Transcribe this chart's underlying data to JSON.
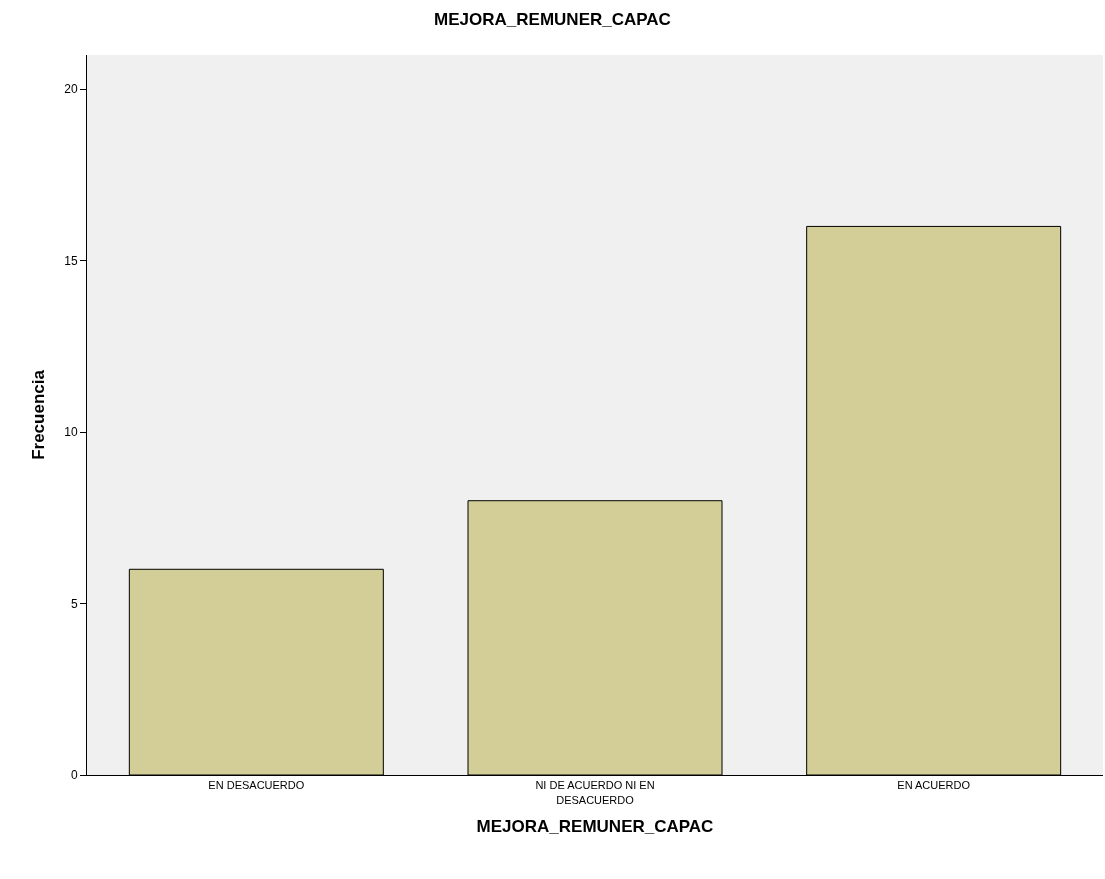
{
  "chart_data": {
    "type": "bar",
    "title": "MEJORA_REMUNER_CAPAC",
    "xlabel": "MEJORA_REMUNER_CAPAC",
    "ylabel": "Frecuencia",
    "categories": [
      "EN DESACUERDO",
      "NI DE ACUERDO NI EN DESACUERDO",
      "EN ACUERDO"
    ],
    "values": [
      6,
      8,
      16
    ],
    "color": "#d3ce97",
    "ylim": [
      0,
      21
    ],
    "yticks": [
      0,
      5,
      10,
      15,
      20
    ],
    "grid": false
  }
}
